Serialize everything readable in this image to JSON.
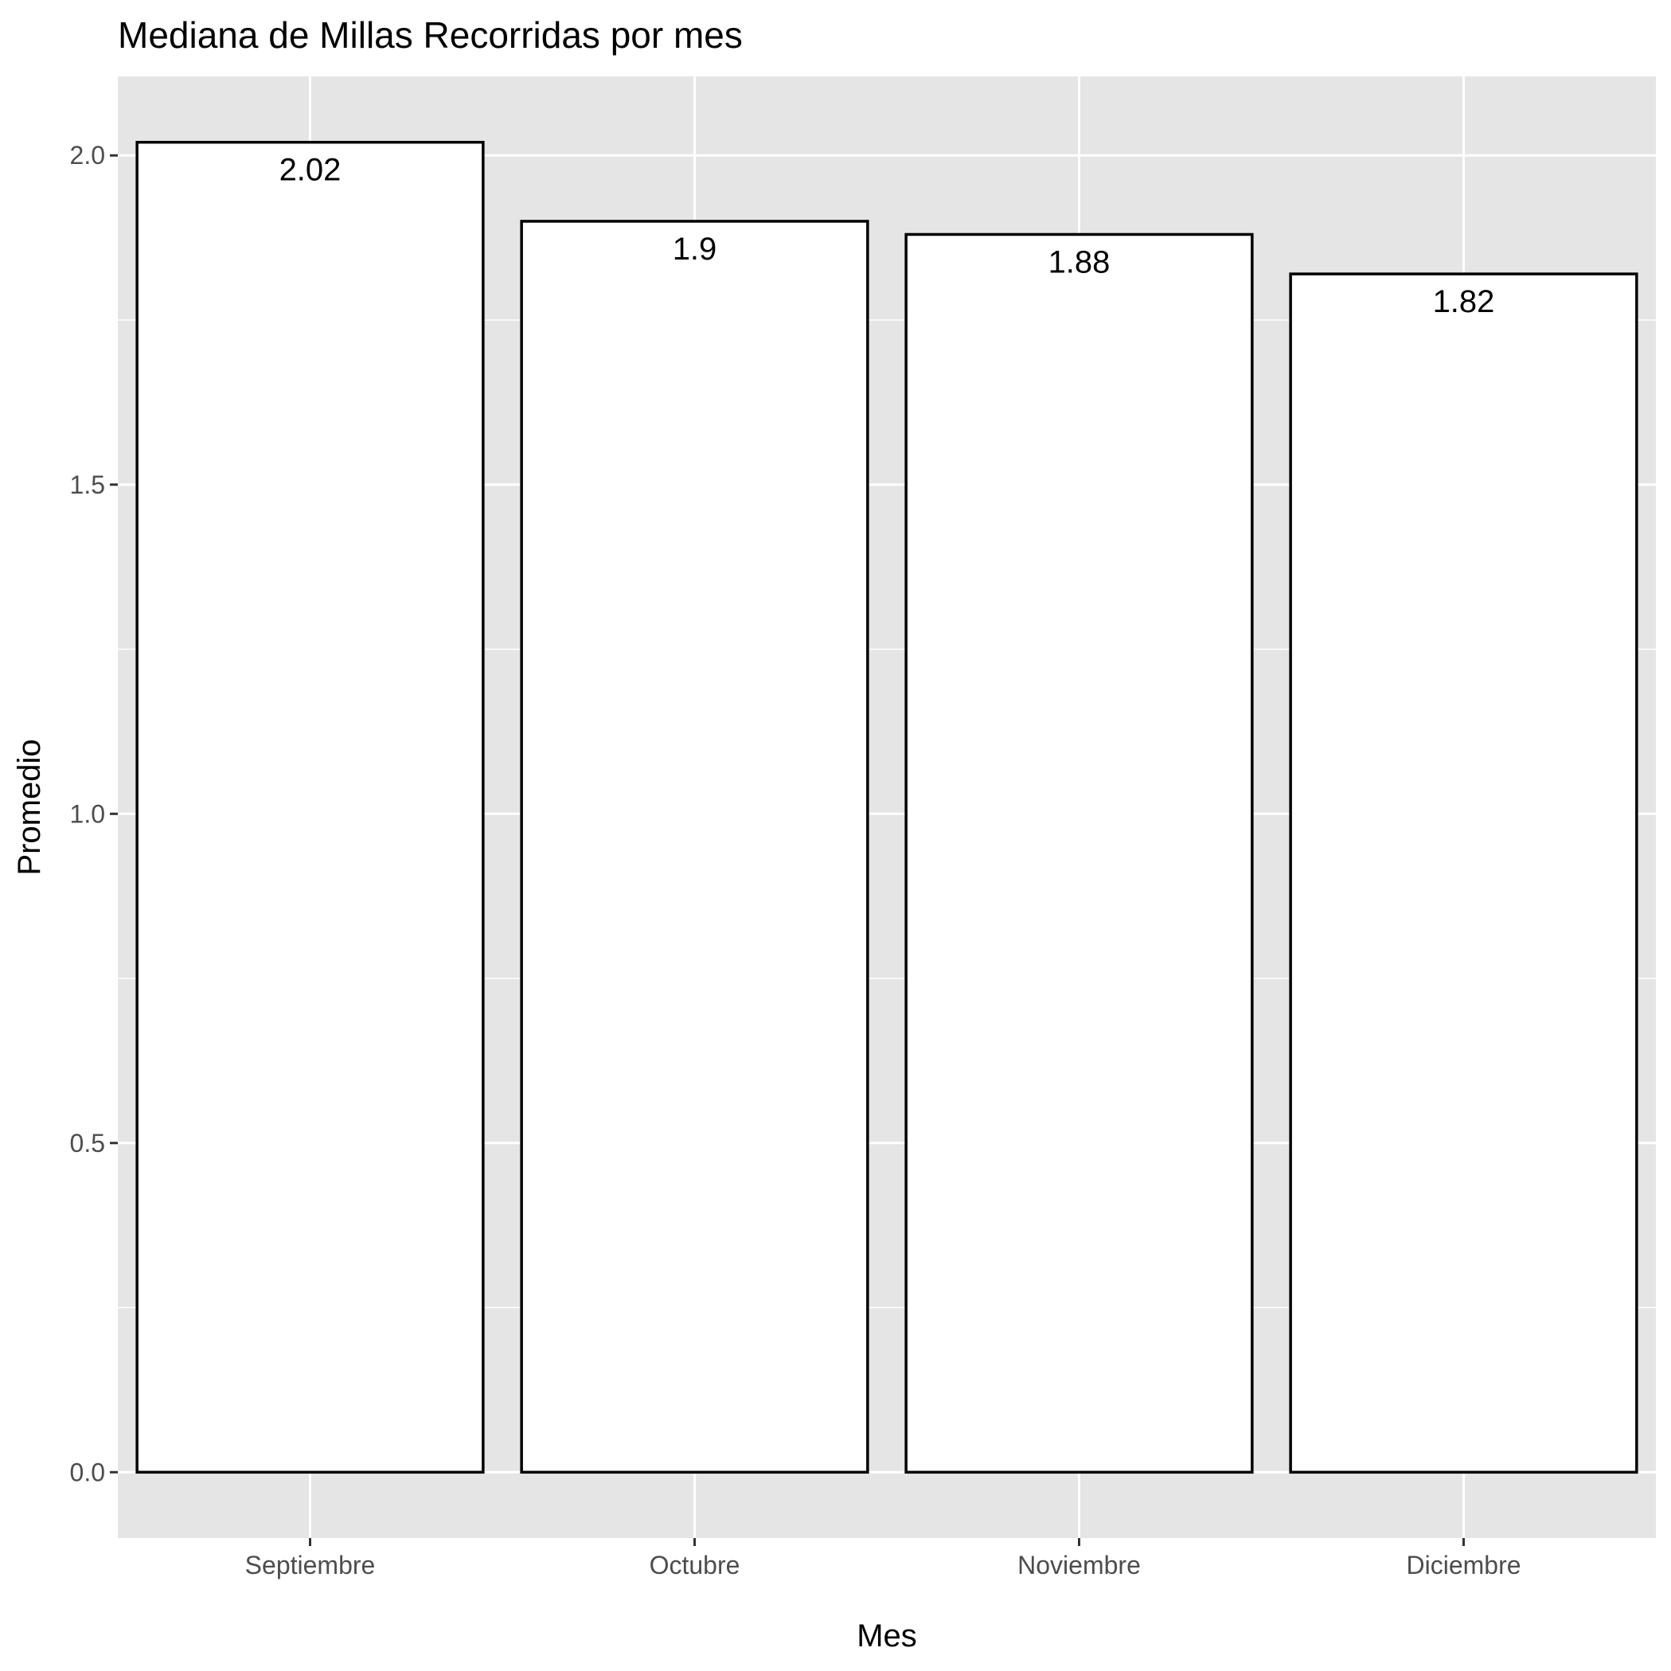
{
  "chart_data": {
    "type": "bar",
    "title": "Mediana de Millas Recorridas por mes",
    "xlabel": "Mes",
    "ylabel": "Promedio",
    "categories": [
      "Septiembre",
      "Octubre",
      "Noviembre",
      "Diciembre"
    ],
    "values": [
      2.02,
      1.9,
      1.88,
      1.82
    ],
    "data_labels": [
      "2.02",
      "1.9",
      "1.88",
      "1.82"
    ],
    "ylim": [
      -0.1,
      2.12
    ],
    "yticks": [
      0.0,
      0.5,
      1.0,
      1.5,
      2.0
    ],
    "ytick_labels": [
      "0.0",
      "0.5",
      "1.0",
      "1.5",
      "2.0"
    ],
    "grid": true,
    "legend": "none",
    "colors": {
      "panel_background": "#e5e5e5",
      "grid": "#ffffff",
      "bar_fill": "#ffffff",
      "bar_outline": "#000000",
      "tick_text": "#4d4d4d",
      "tick_mark": "#333333"
    }
  }
}
